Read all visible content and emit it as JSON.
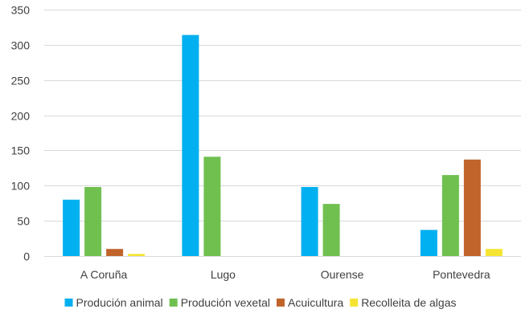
{
  "chart_data": {
    "type": "bar",
    "categories": [
      "A Coruña",
      "Lugo",
      "Ourense",
      "Pontevedra"
    ],
    "series": [
      {
        "name": "Produción animal",
        "color": "#00b0f0",
        "values": [
          80,
          314,
          98,
          37
        ]
      },
      {
        "name": "Produción vexetal",
        "color": "#70c050",
        "values": [
          98,
          141,
          74,
          115
        ]
      },
      {
        "name": "Acuicultura",
        "color": "#c0642c",
        "values": [
          10,
          0,
          0,
          137
        ]
      },
      {
        "name": "Recolleita de algas",
        "color": "#f5e532",
        "values": [
          3,
          0,
          0,
          10
        ]
      }
    ],
    "ylim": [
      0,
      350
    ],
    "yticks": [
      0,
      50,
      100,
      150,
      200,
      250,
      300,
      350
    ],
    "grid": true,
    "legend": "bottom"
  }
}
